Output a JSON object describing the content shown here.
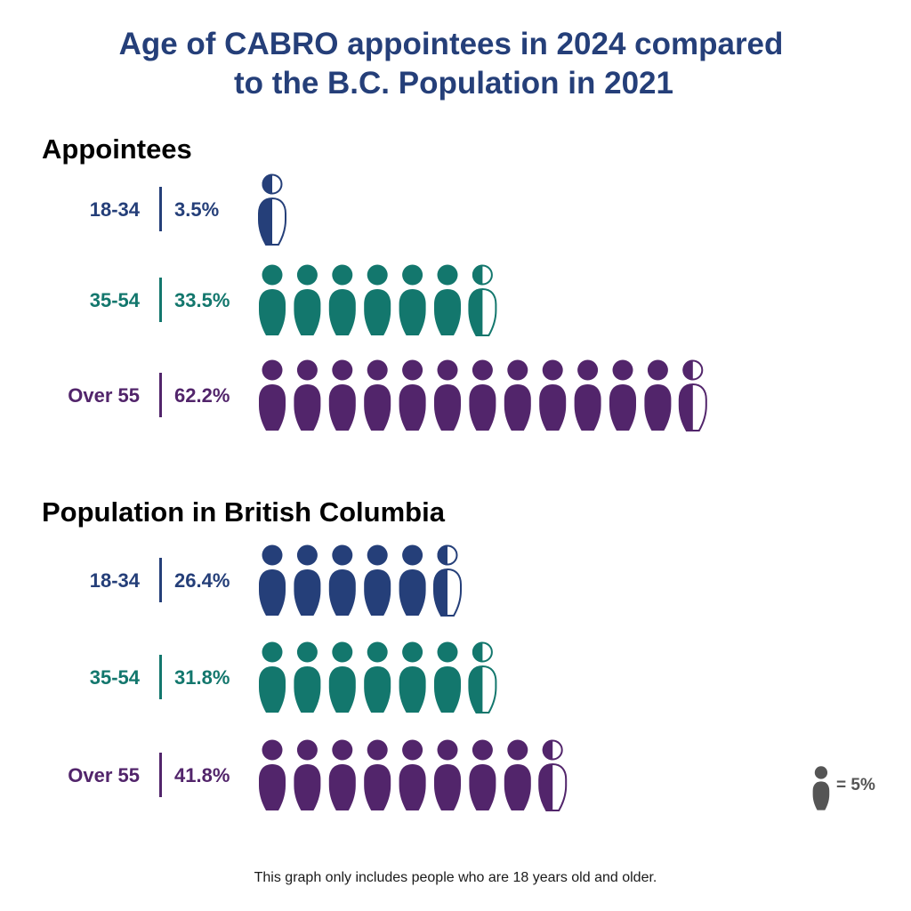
{
  "colors": {
    "title": "#253F79",
    "section": "#000000",
    "age_18_34": "#253F79",
    "age_35_54": "#13776D",
    "age_over_55": "#52256B",
    "legend": "#555555",
    "footnote": "#1a1a1a"
  },
  "chart_data": {
    "type": "pictograph",
    "title_lines": [
      "Age of CABRO appointees in 2024 compared",
      "to the B.C. Population in 2021"
    ],
    "unit_value": 5,
    "legend_label": "= 5%",
    "footnote": "This graph only includes people who are 18 years old and older.",
    "groups": [
      {
        "name": "Appointees",
        "rows": [
          {
            "label": "18-34",
            "value_label": "3.5%",
            "value": 3.5,
            "color_key": "age_18_34"
          },
          {
            "label": "35-54",
            "value_label": "33.5%",
            "value": 33.5,
            "color_key": "age_35_54"
          },
          {
            "label": "Over 55",
            "value_label": "62.2%",
            "value": 62.2,
            "color_key": "age_over_55"
          }
        ]
      },
      {
        "name": "Population in British Columbia",
        "rows": [
          {
            "label": "18-34",
            "value_label": "26.4%",
            "value": 26.4,
            "color_key": "age_18_34"
          },
          {
            "label": "35-54",
            "value_label": "31.8%",
            "value": 31.8,
            "color_key": "age_35_54"
          },
          {
            "label": "Over 55",
            "value_label": "41.8%",
            "value": 41.8,
            "color_key": "age_over_55"
          }
        ]
      }
    ]
  }
}
